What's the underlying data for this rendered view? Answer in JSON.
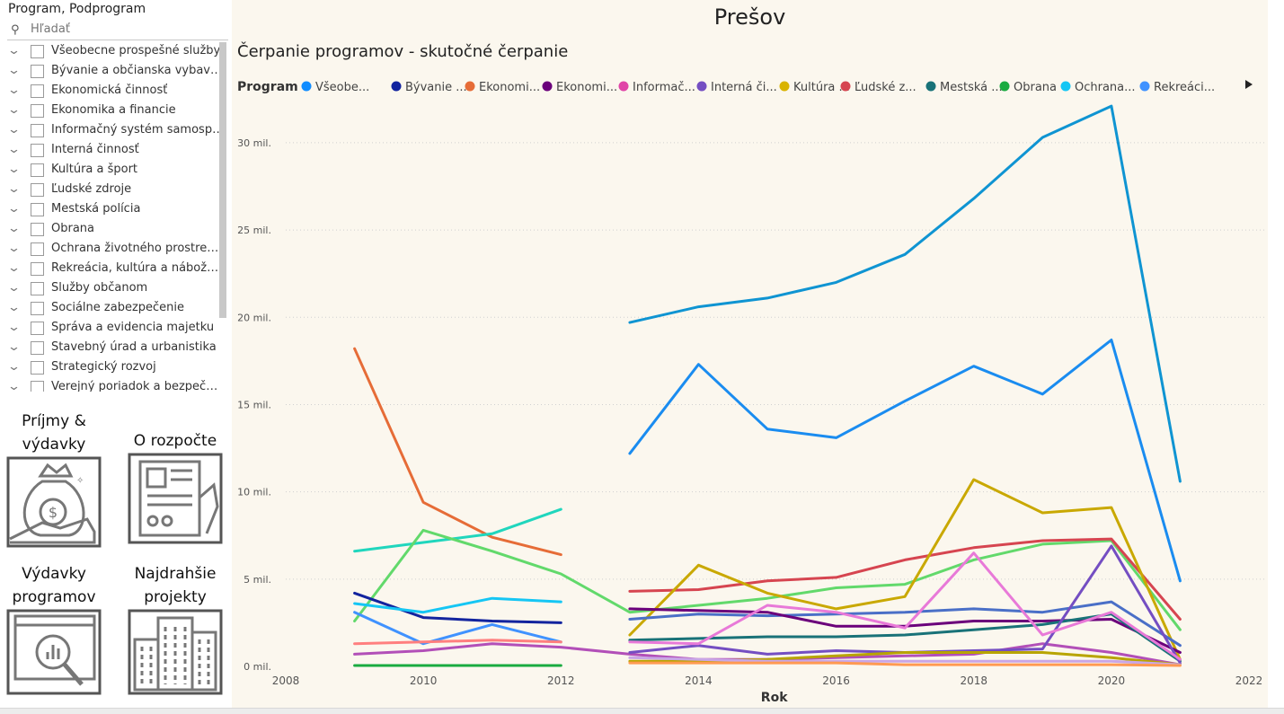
{
  "slicer": {
    "title": "Program, Podprogram",
    "search_placeholder": "Hľadať",
    "items": [
      "Všeobecne prospešné služby",
      "Bývanie a občianska vybavenosť",
      "Ekonomická činnosť",
      "Ekonomika a financie",
      "Informačný systém samosprávy",
      "Interná činnosť",
      "Kultúra a šport",
      "Ľudské zdroje",
      "Mestská polícia",
      "Obrana",
      "Ochrana životného prostredia",
      "Rekreácia, kultúra a náboženstvo",
      "Služby občanom",
      "Sociálne zabezpečenie",
      "Správa a evidencia majetku",
      "Stavebný úrad a urbanistika",
      "Strategický rozvoj",
      "Verejný poriadok a bezpečnosť"
    ]
  },
  "nav": {
    "income": "Príjmy & výdavky",
    "budget": "O rozpočte",
    "program_spending": "Výdavky programov",
    "expensive_projects": "Najdrahšie projekty"
  },
  "page_title": "Prešov",
  "chart_data": {
    "type": "line",
    "title": "Čerpanie programov - skutočné čerpanie",
    "xlabel": "Rok",
    "ylabel": "",
    "legend_title": "Program",
    "legend_position": "top",
    "grid": true,
    "xlim": [
      2008,
      2022
    ],
    "xticks": [
      2008,
      2010,
      2012,
      2014,
      2016,
      2018,
      2020,
      2022
    ],
    "ylim": [
      0,
      32000000
    ],
    "yticks": [
      0,
      5000000,
      10000000,
      15000000,
      20000000,
      25000000,
      30000000
    ],
    "ytick_labels": [
      "0 mil.",
      "5 mil.",
      "10 mil.",
      "15 mil.",
      "20 mil.",
      "25 mil.",
      "30 mil."
    ],
    "legend_entries": [
      {
        "label": "Všeobe...",
        "color": "#118dff"
      },
      {
        "label": "Bývanie ...",
        "color": "#12239e"
      },
      {
        "label": "Ekonomi...",
        "color": "#e66c37"
      },
      {
        "label": "Ekonomi...",
        "color": "#6b007b"
      },
      {
        "label": "Informač...",
        "color": "#e044a7"
      },
      {
        "label": "Interná či...",
        "color": "#744ec2"
      },
      {
        "label": "Kultúra ...",
        "color": "#d9b300"
      },
      {
        "label": "Ľudské z...",
        "color": "#d64550"
      },
      {
        "label": "Mestská ...",
        "color": "#197278"
      },
      {
        "label": "Obrana",
        "color": "#1aab40"
      },
      {
        "label": "Ochrana...",
        "color": "#15c6f4"
      },
      {
        "label": "Rekreáci...",
        "color": "#4092ff"
      }
    ],
    "series": [
      {
        "color": "#0f94d2",
        "points": [
          [
            2013,
            19700000
          ],
          [
            2014,
            20600000
          ],
          [
            2015,
            21100000
          ],
          [
            2016,
            22000000
          ],
          [
            2017,
            23600000
          ],
          [
            2018,
            26800000
          ],
          [
            2019,
            30300000
          ],
          [
            2020,
            32100000
          ],
          [
            2021,
            10600000
          ]
        ]
      },
      {
        "color": "#1a8cf0",
        "points": [
          [
            2013,
            12200000
          ],
          [
            2014,
            17300000
          ],
          [
            2015,
            13600000
          ],
          [
            2016,
            13100000
          ],
          [
            2017,
            15200000
          ],
          [
            2018,
            17200000
          ],
          [
            2019,
            15600000
          ],
          [
            2020,
            18700000
          ],
          [
            2021,
            4900000
          ]
        ]
      },
      {
        "color": "#e66c37",
        "points": [
          [
            2009,
            18200000
          ],
          [
            2010,
            9400000
          ],
          [
            2011,
            7400000
          ],
          [
            2012,
            6400000
          ]
        ]
      },
      {
        "color": "#20d6bd",
        "points": [
          [
            2009,
            6600000
          ],
          [
            2010,
            7100000
          ],
          [
            2011,
            7600000
          ],
          [
            2012,
            9000000
          ]
        ]
      },
      {
        "color": "#62d96b",
        "points": [
          [
            2009,
            2600000
          ],
          [
            2010,
            7800000
          ],
          [
            2011,
            6600000
          ],
          [
            2012,
            5300000
          ],
          [
            2013,
            3100000
          ],
          [
            2014,
            3500000
          ],
          [
            2015,
            3900000
          ],
          [
            2016,
            4500000
          ],
          [
            2017,
            4700000
          ],
          [
            2018,
            6100000
          ],
          [
            2019,
            7000000
          ],
          [
            2020,
            7200000
          ],
          [
            2021,
            2100000
          ]
        ]
      },
      {
        "color": "#d64550",
        "points": [
          [
            2013,
            4300000
          ],
          [
            2014,
            4400000
          ],
          [
            2015,
            4900000
          ],
          [
            2016,
            5100000
          ],
          [
            2017,
            6100000
          ],
          [
            2018,
            6800000
          ],
          [
            2019,
            7200000
          ],
          [
            2020,
            7300000
          ],
          [
            2021,
            2700000
          ]
        ]
      },
      {
        "color": "#c9a800",
        "points": [
          [
            2013,
            1800000
          ],
          [
            2014,
            5800000
          ],
          [
            2015,
            4200000
          ],
          [
            2016,
            3300000
          ],
          [
            2017,
            4000000
          ],
          [
            2018,
            10700000
          ],
          [
            2019,
            8800000
          ],
          [
            2020,
            9100000
          ],
          [
            2021,
            400000
          ]
        ]
      },
      {
        "color": "#12239e",
        "points": [
          [
            2009,
            4200000
          ],
          [
            2010,
            2800000
          ],
          [
            2011,
            2600000
          ],
          [
            2012,
            2500000
          ]
        ]
      },
      {
        "color": "#15c6f4",
        "points": [
          [
            2009,
            3600000
          ],
          [
            2010,
            3100000
          ],
          [
            2011,
            3900000
          ],
          [
            2012,
            3700000
          ]
        ]
      },
      {
        "color": "#4092ff",
        "points": [
          [
            2009,
            3100000
          ],
          [
            2010,
            1300000
          ],
          [
            2011,
            2400000
          ],
          [
            2012,
            1400000
          ]
        ]
      },
      {
        "color": "#ff7f7f",
        "points": [
          [
            2009,
            1300000
          ],
          [
            2010,
            1400000
          ],
          [
            2011,
            1500000
          ],
          [
            2012,
            1400000
          ]
        ]
      },
      {
        "color": "#b24fb8",
        "points": [
          [
            2009,
            700000
          ],
          [
            2010,
            900000
          ],
          [
            2011,
            1300000
          ],
          [
            2012,
            1100000
          ],
          [
            2013,
            700000
          ],
          [
            2014,
            400000
          ],
          [
            2015,
            400000
          ],
          [
            2016,
            500000
          ],
          [
            2017,
            600000
          ],
          [
            2018,
            700000
          ],
          [
            2019,
            1300000
          ],
          [
            2020,
            800000
          ],
          [
            2021,
            100000
          ]
        ]
      },
      {
        "color": "#1aab40",
        "points": [
          [
            2009,
            50000
          ],
          [
            2010,
            50000
          ],
          [
            2011,
            50000
          ],
          [
            2012,
            50000
          ]
        ]
      },
      {
        "color": "#4a6fc7",
        "points": [
          [
            2013,
            2700000
          ],
          [
            2014,
            3000000
          ],
          [
            2015,
            2900000
          ],
          [
            2016,
            3000000
          ],
          [
            2017,
            3100000
          ],
          [
            2018,
            3300000
          ],
          [
            2019,
            3100000
          ],
          [
            2020,
            3700000
          ],
          [
            2021,
            1200000
          ]
        ]
      },
      {
        "color": "#6b007b",
        "points": [
          [
            2013,
            3300000
          ],
          [
            2014,
            3200000
          ],
          [
            2015,
            3100000
          ],
          [
            2016,
            2300000
          ],
          [
            2017,
            2300000
          ],
          [
            2018,
            2600000
          ],
          [
            2019,
            2600000
          ],
          [
            2020,
            2700000
          ],
          [
            2021,
            800000
          ]
        ]
      },
      {
        "color": "#197278",
        "points": [
          [
            2013,
            1500000
          ],
          [
            2014,
            1600000
          ],
          [
            2015,
            1700000
          ],
          [
            2016,
            1700000
          ],
          [
            2017,
            1800000
          ],
          [
            2018,
            2100000
          ],
          [
            2019,
            2400000
          ],
          [
            2020,
            3000000
          ],
          [
            2021,
            300000
          ]
        ]
      },
      {
        "color": "#744ec2",
        "points": [
          [
            2013,
            800000
          ],
          [
            2014,
            1200000
          ],
          [
            2015,
            700000
          ],
          [
            2016,
            900000
          ],
          [
            2017,
            800000
          ],
          [
            2018,
            900000
          ],
          [
            2019,
            1000000
          ],
          [
            2020,
            6900000
          ],
          [
            2021,
            200000
          ]
        ]
      },
      {
        "color": "#e879d8",
        "points": [
          [
            2013,
            1400000
          ],
          [
            2014,
            1300000
          ],
          [
            2015,
            3500000
          ],
          [
            2016,
            3100000
          ],
          [
            2017,
            2200000
          ],
          [
            2018,
            6500000
          ],
          [
            2019,
            1800000
          ],
          [
            2020,
            3100000
          ],
          [
            2021,
            400000
          ]
        ]
      },
      {
        "color": "#b8a400",
        "points": [
          [
            2013,
            300000
          ],
          [
            2014,
            300000
          ],
          [
            2015,
            400000
          ],
          [
            2016,
            600000
          ],
          [
            2017,
            800000
          ],
          [
            2018,
            800000
          ],
          [
            2019,
            800000
          ],
          [
            2020,
            500000
          ],
          [
            2021,
            100000
          ]
        ]
      },
      {
        "color": "#c9a6e6",
        "points": [
          [
            2013,
            500000
          ],
          [
            2014,
            400000
          ],
          [
            2015,
            300000
          ],
          [
            2016,
            300000
          ],
          [
            2017,
            300000
          ],
          [
            2018,
            300000
          ],
          [
            2019,
            300000
          ],
          [
            2020,
            300000
          ],
          [
            2021,
            100000
          ]
        ]
      },
      {
        "color": "#ff9a52",
        "points": [
          [
            2013,
            200000
          ],
          [
            2014,
            200000
          ],
          [
            2015,
            200000
          ],
          [
            2016,
            200000
          ],
          [
            2017,
            100000
          ],
          [
            2018,
            100000
          ],
          [
            2019,
            100000
          ],
          [
            2020,
            100000
          ],
          [
            2021,
            50000
          ]
        ]
      }
    ]
  }
}
